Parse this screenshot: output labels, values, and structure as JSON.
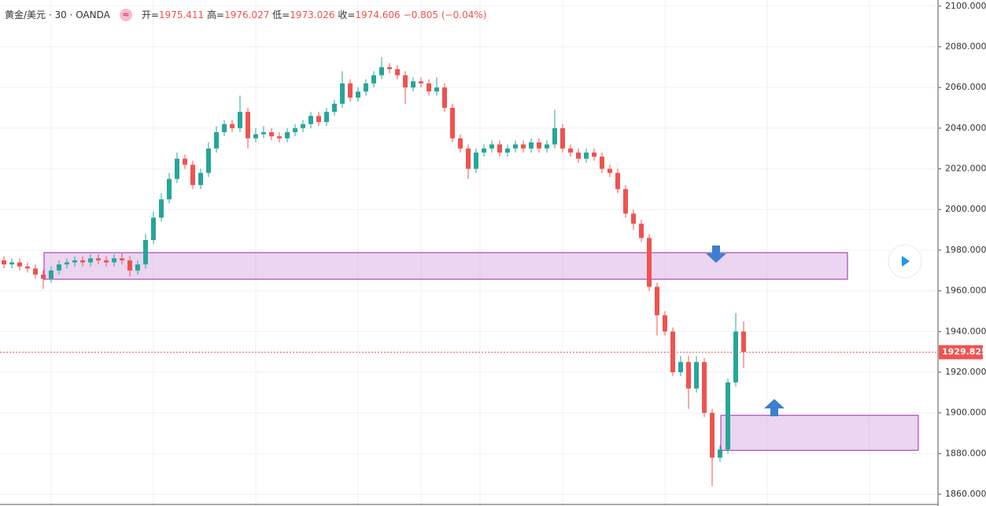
{
  "chart_data": {
    "type": "candlestick",
    "title": "黄金/美元 · 30 · OANDA",
    "ohlc_labels": [
      {
        "label": "开=",
        "value": "1975.411"
      },
      {
        "label": "高=",
        "value": "1976.027"
      },
      {
        "label": "低=",
        "value": "1973.026"
      },
      {
        "label": "收=",
        "value": "1974.606"
      }
    ],
    "change": "−0.805 (−0.04%)",
    "up_color": "#26a69a",
    "down_color": "#ef5350",
    "open": [
      1975,
      1973,
      1974,
      1972,
      1971,
      1968,
      1966,
      1970,
      1973,
      1974,
      1975,
      1974,
      1976,
      1975,
      1974,
      1976,
      1975,
      1970,
      1973,
      1985,
      1996,
      2005,
      2015,
      2025,
      2022,
      2012,
      2018,
      2030,
      2038,
      2042,
      2040,
      2048,
      2035,
      2037,
      2038,
      2036,
      2035,
      2038,
      2040,
      2042,
      2046,
      2043,
      2048,
      2052,
      2062,
      2055,
      2058,
      2062,
      2066,
      2070,
      2069,
      2066,
      2060,
      2063,
      2062,
      2058,
      2060,
      2050,
      2035,
      2030,
      2020,
      2028,
      2030,
      2032,
      2028,
      2030,
      2032,
      2030,
      2033,
      2030,
      2032,
      2040,
      2030,
      2028,
      2025,
      2028,
      2026,
      2020,
      2018,
      2010,
      1998,
      1993,
      1986,
      1962,
      1948,
      1940,
      1920,
      1925,
      1912,
      1925,
      1900,
      1878,
      1882,
      1915,
      1940
    ],
    "high": [
      1977,
      1976,
      1976,
      1974,
      1973,
      1970,
      1972,
      1975,
      1976,
      1977,
      1977,
      1978,
      1978,
      1977,
      1978,
      1979,
      1977,
      1975,
      1988,
      1999,
      2008,
      2018,
      2028,
      2027,
      2024,
      2020,
      2033,
      2041,
      2044,
      2044,
      2056,
      2050,
      2040,
      2041,
      2040,
      2038,
      2040,
      2042,
      2044,
      2048,
      2048,
      2050,
      2054,
      2068,
      2064,
      2060,
      2064,
      2068,
      2075,
      2072,
      2071,
      2068,
      2065,
      2065,
      2064,
      2065,
      2062,
      2052,
      2037,
      2032,
      2030,
      2032,
      2034,
      2034,
      2032,
      2034,
      2034,
      2035,
      2035,
      2034,
      2049,
      2042,
      2032,
      2030,
      2030,
      2030,
      2028,
      2022,
      2020,
      2012,
      2000,
      1995,
      1988,
      1964,
      1950,
      1942,
      1928,
      1928,
      1928,
      1927,
      1902,
      1884,
      1917,
      1949,
      1945
    ],
    "low": [
      1971,
      1971,
      1970,
      1969,
      1966,
      1961,
      1964,
      1968,
      1971,
      1972,
      1972,
      1972,
      1973,
      1972,
      1972,
      1973,
      1967,
      1968,
      1971,
      1983,
      1994,
      2003,
      2013,
      2020,
      2010,
      2010,
      2016,
      2028,
      2036,
      2038,
      2038,
      2030,
      2033,
      2035,
      2034,
      2033,
      2033,
      2036,
      2038,
      2040,
      2041,
      2041,
      2046,
      2050,
      2053,
      2053,
      2056,
      2060,
      2064,
      2067,
      2064,
      2052,
      2058,
      2060,
      2056,
      2056,
      2048,
      2033,
      2028,
      2015,
      2018,
      2026,
      2028,
      2026,
      2026,
      2028,
      2028,
      2028,
      2028,
      2028,
      2030,
      2028,
      2026,
      2023,
      2023,
      2024,
      2018,
      2016,
      2008,
      1996,
      1990,
      1984,
      1960,
      1938,
      1938,
      1918,
      1918,
      1902,
      1910,
      1898,
      1864,
      1876,
      1880,
      1913,
      1922
    ],
    "close": [
      1973,
      1974,
      1972,
      1971,
      1968,
      1966,
      1970,
      1973,
      1974,
      1975,
      1974,
      1976,
      1975,
      1974,
      1976,
      1975,
      1970,
      1973,
      1985,
      1996,
      2005,
      2015,
      2025,
      2022,
      2012,
      2018,
      2030,
      2038,
      2042,
      2040,
      2048,
      2035,
      2037,
      2038,
      2036,
      2035,
      2038,
      2040,
      2042,
      2046,
      2043,
      2048,
      2052,
      2062,
      2055,
      2058,
      2062,
      2066,
      2070,
      2069,
      2066,
      2060,
      2063,
      2062,
      2058,
      2060,
      2050,
      2035,
      2030,
      2020,
      2028,
      2030,
      2032,
      2028,
      2030,
      2032,
      2030,
      2033,
      2030,
      2032,
      2040,
      2030,
      2028,
      2025,
      2028,
      2026,
      2020,
      2018,
      2010,
      1998,
      1993,
      1986,
      1962,
      1948,
      1940,
      1920,
      1925,
      1912,
      1925,
      1900,
      1878,
      1882,
      1915,
      1940,
      1930
    ],
    "last_price": {
      "value": 1929.825,
      "label": "1929.825"
    },
    "zones": [
      {
        "top": 1978.8,
        "bottom": 1965.7
      },
      {
        "top": 1898.8,
        "bottom": 1881.6
      }
    ],
    "ylim": [
      1855,
      2103
    ],
    "yticks": [
      {
        "value": 1860,
        "label": "1860.000"
      },
      {
        "value": 1880,
        "label": "1880.000"
      },
      {
        "value": 1900,
        "label": "1900.000"
      },
      {
        "value": 1920,
        "label": "1920.000"
      },
      {
        "value": 1940,
        "label": "1940.000"
      },
      {
        "value": 1960,
        "label": "1960.000"
      },
      {
        "value": 1980,
        "label": "1980.000"
      },
      {
        "value": 2000,
        "label": "2000.000"
      },
      {
        "value": 2020,
        "label": "2020.000"
      },
      {
        "value": 2040,
        "label": "2040.000"
      },
      {
        "value": 2060,
        "label": "2060.000"
      },
      {
        "value": 2080,
        "label": "2080.000"
      },
      {
        "value": 2100,
        "label": "2100.000"
      }
    ],
    "grid": true
  }
}
